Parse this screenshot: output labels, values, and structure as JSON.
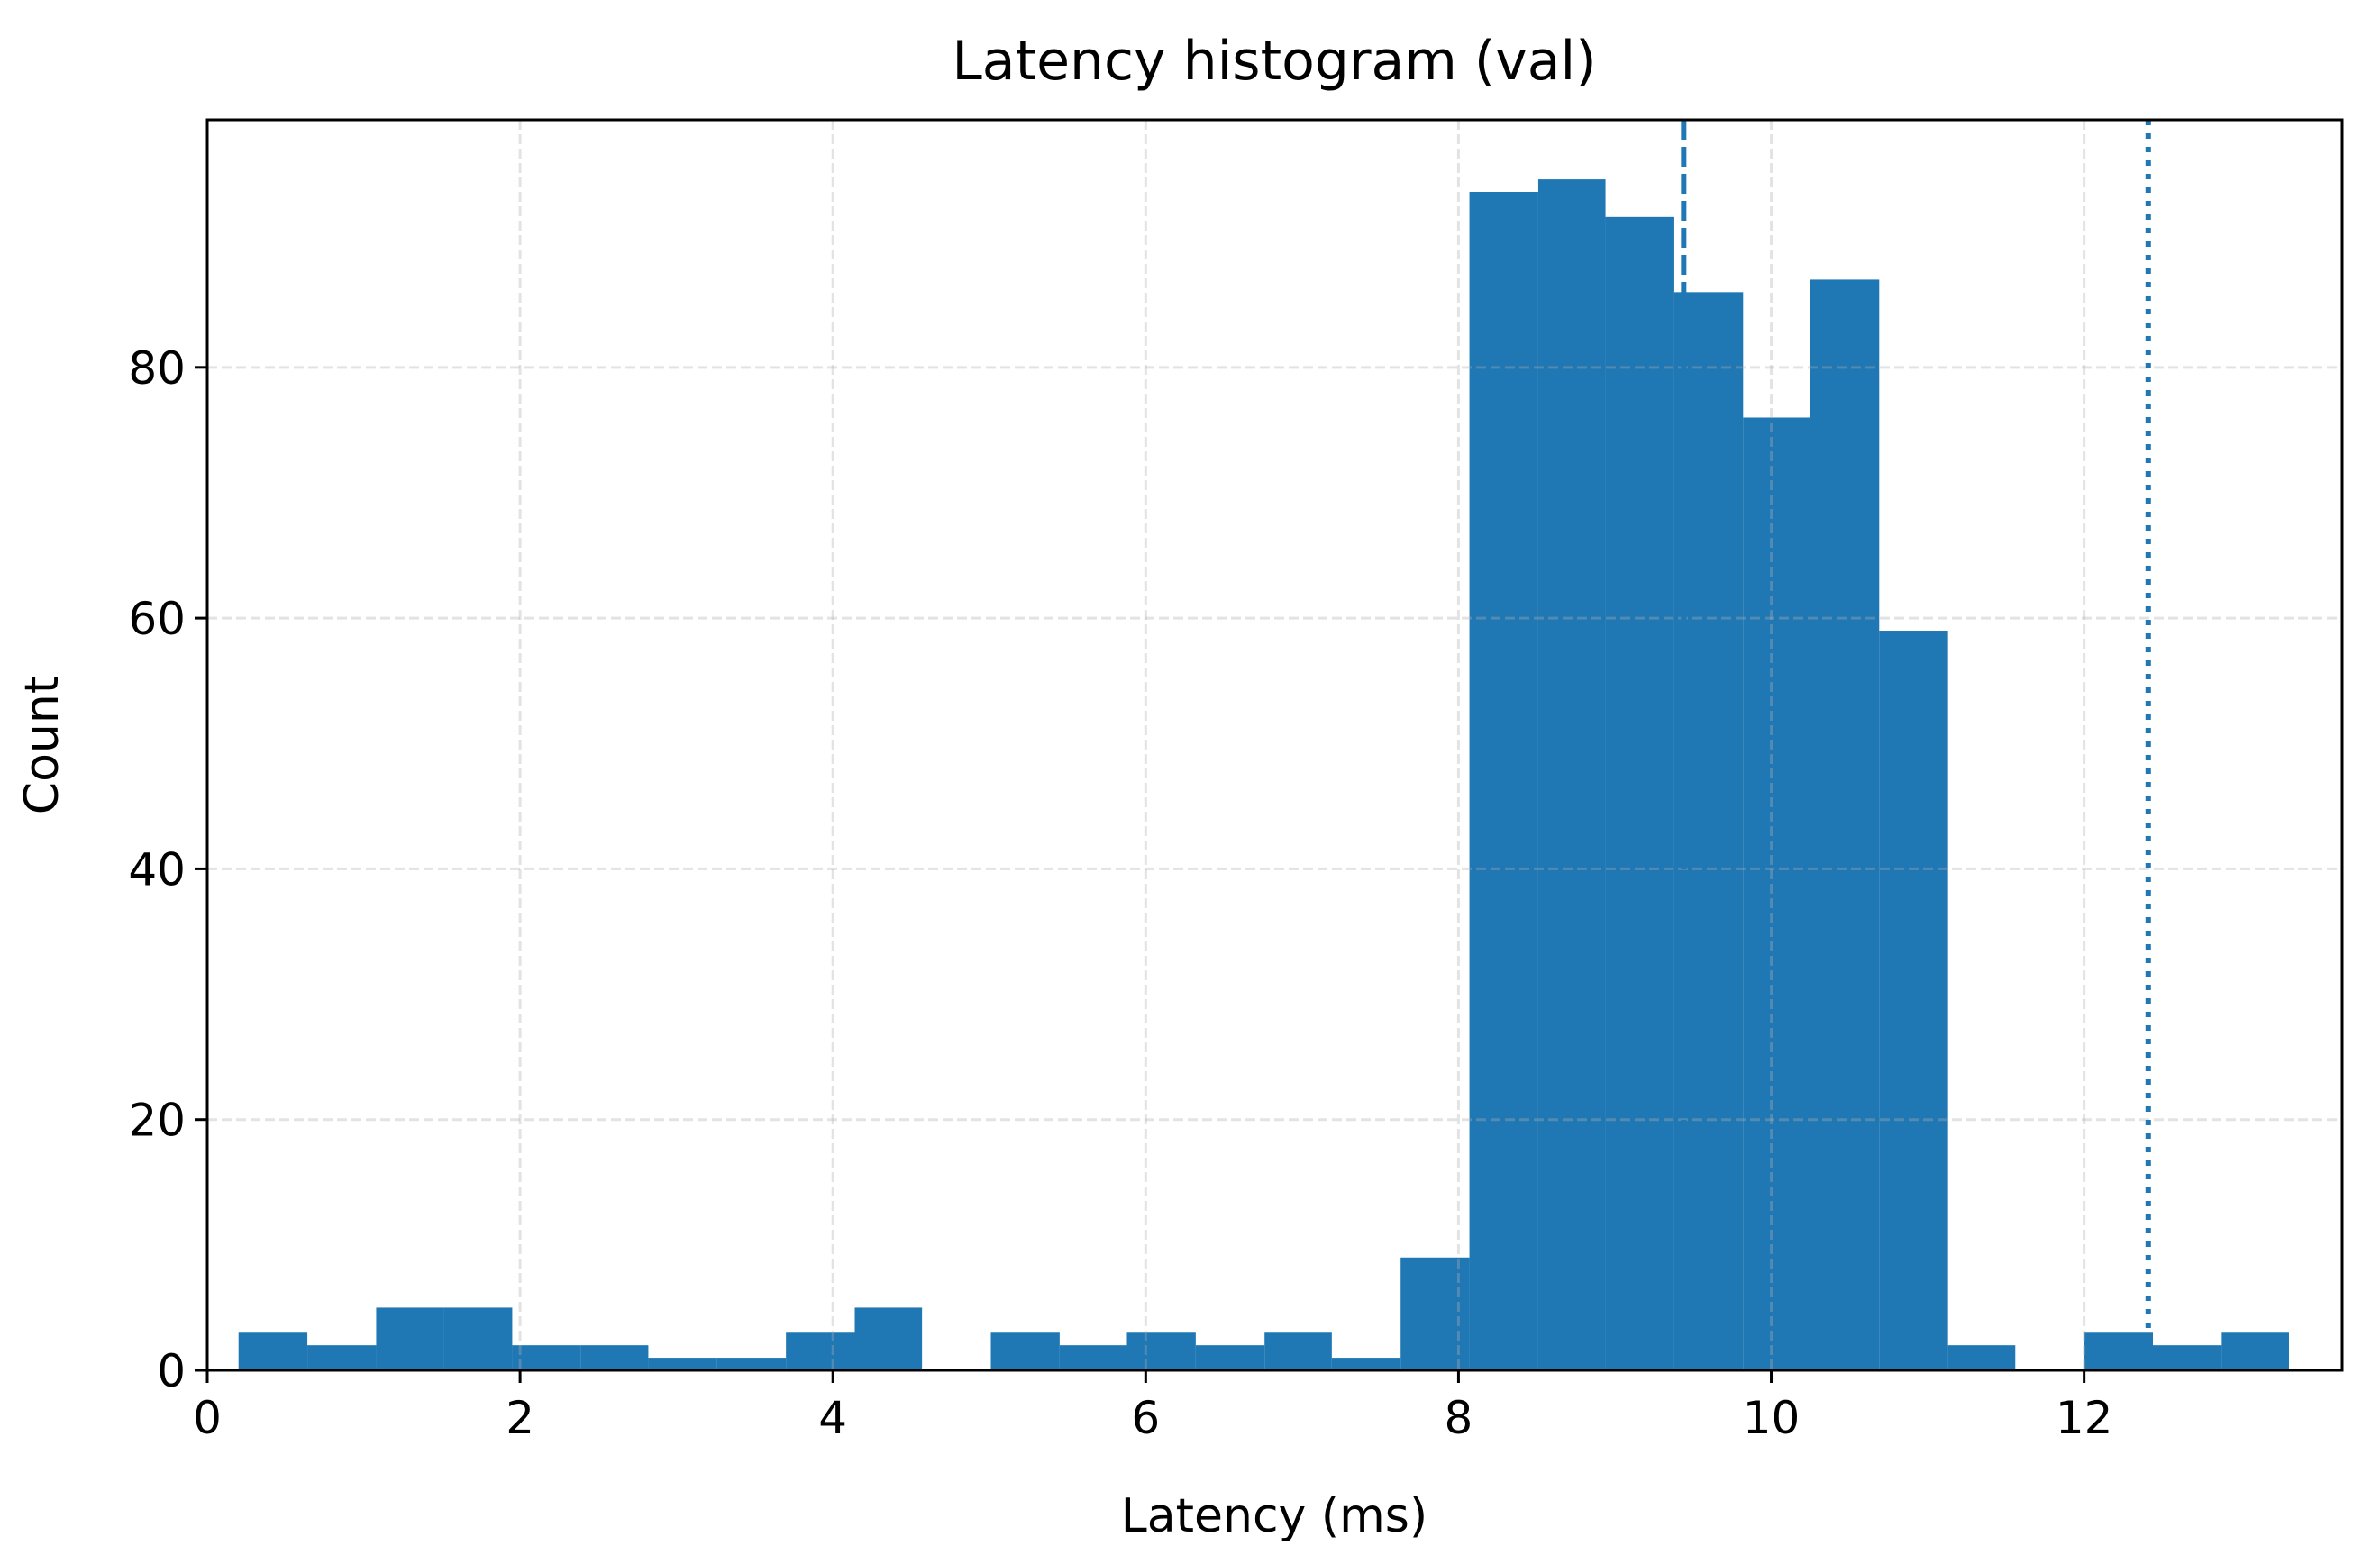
{
  "chart_data": {
    "type": "histogram",
    "title": "Latency histogram (val)",
    "xlabel": "Latency (ms)",
    "ylabel": "Count",
    "bins": [
      0.2,
      0.64,
      1.08,
      1.51,
      1.95,
      2.39,
      2.82,
      3.26,
      3.7,
      4.14,
      4.57,
      5.01,
      5.45,
      5.88,
      6.32,
      6.76,
      7.19,
      7.63,
      8.07,
      8.51,
      8.94,
      9.38,
      9.82,
      10.25,
      10.69,
      11.13,
      11.56,
      12.0,
      12.44,
      12.88,
      13.31
    ],
    "counts": [
      3,
      2,
      5,
      5,
      2,
      2,
      1,
      1,
      3,
      5,
      0,
      3,
      2,
      3,
      2,
      3,
      1,
      9,
      94,
      95,
      92,
      86,
      76,
      87,
      59,
      2,
      0,
      3,
      2,
      3
    ],
    "color": "#1f77b4",
    "vlines": [
      {
        "value": 9.44,
        "style": "dashed"
      },
      {
        "value": 12.41,
        "style": "dotted"
      }
    ],
    "xlim": [
      0,
      13.65
    ],
    "xticks": [
      0,
      2,
      4,
      6,
      8,
      10,
      12
    ],
    "ylim": [
      0,
      99.75
    ],
    "yticks": [
      0,
      20,
      40,
      60,
      80
    ],
    "grid": true
  }
}
